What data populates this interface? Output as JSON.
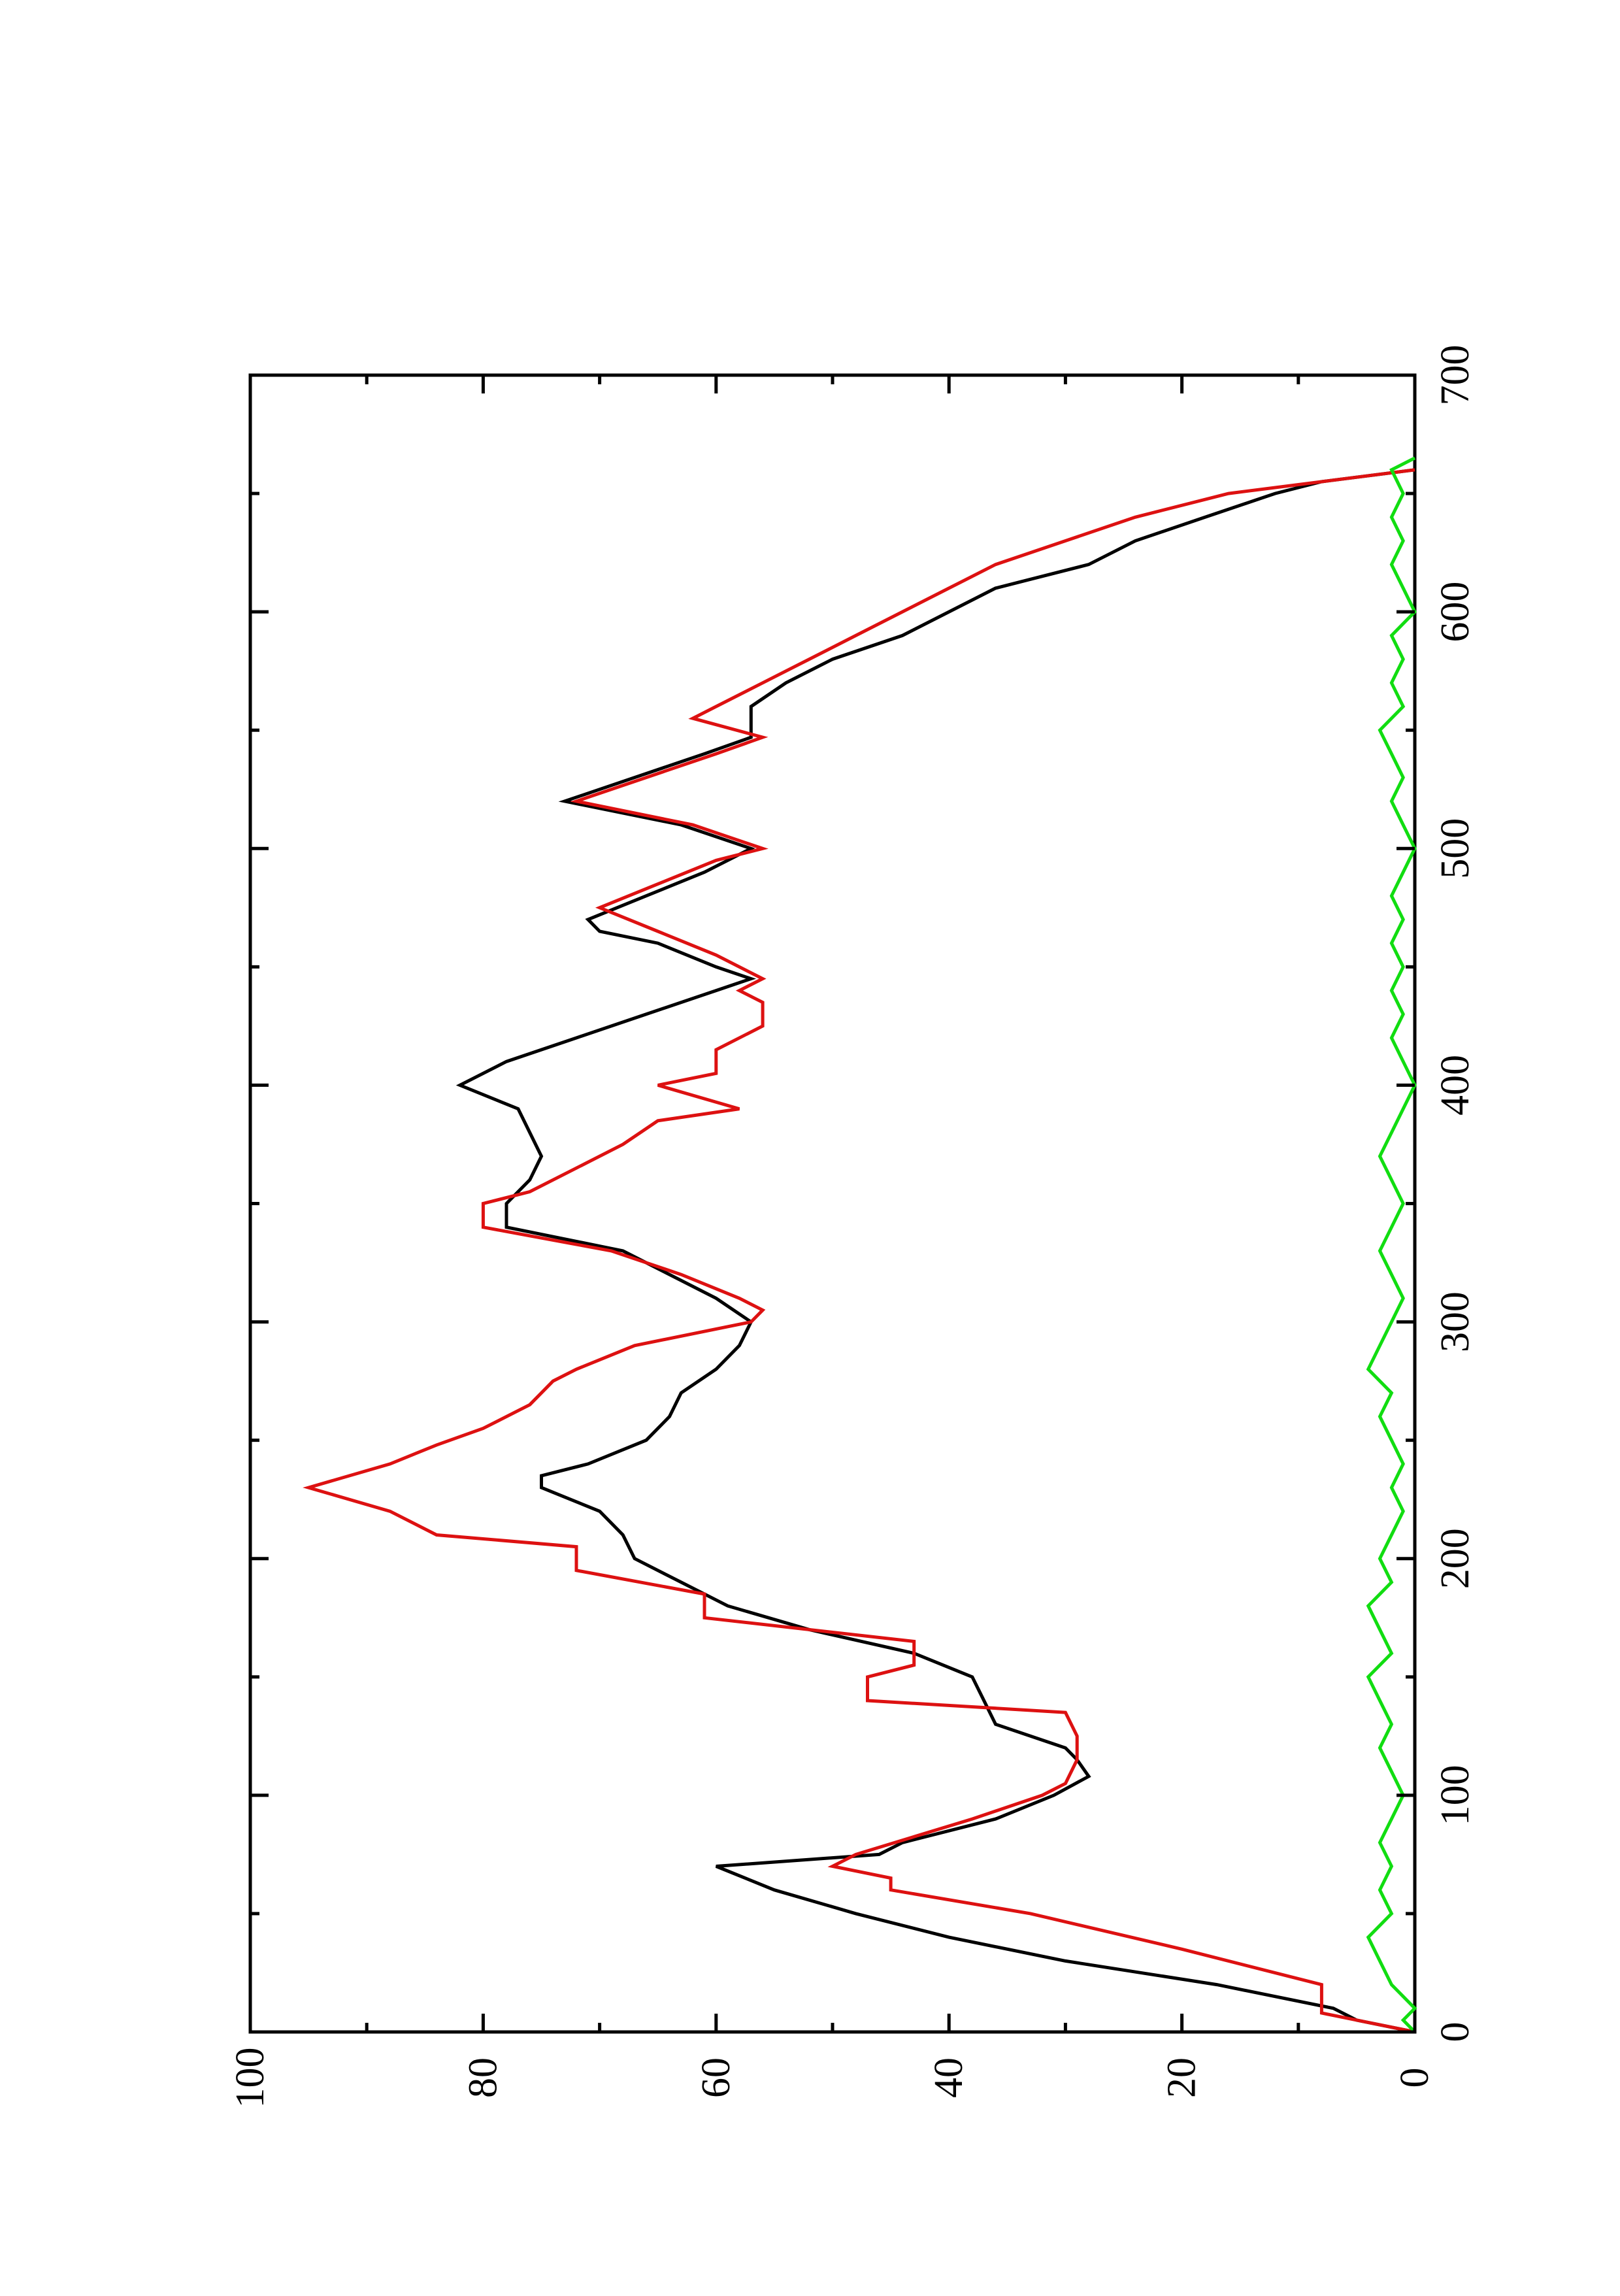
{
  "chart_data": {
    "type": "line",
    "orientation": "rotated-90-ccw",
    "title": "",
    "xlabel": "",
    "ylabel": "",
    "xlim": [
      0,
      700
    ],
    "ylim": [
      0,
      100
    ],
    "x_ticks": [
      0,
      100,
      200,
      300,
      400,
      500,
      600,
      700
    ],
    "x_tick_labels": [
      "0",
      "100",
      "200",
      "300",
      "400",
      "500",
      "600",
      "700"
    ],
    "y_ticks": [
      0,
      20,
      40,
      60,
      80,
      100
    ],
    "y_tick_labels": [
      "0",
      "20",
      "40",
      "60",
      "80",
      "100"
    ],
    "grid": false,
    "legend": "none",
    "series": [
      {
        "color": "#000000",
        "x": [
          0,
          5,
          10,
          20,
          30,
          40,
          50,
          60,
          70,
          75,
          80,
          90,
          100,
          108,
          115,
          120,
          130,
          140,
          150,
          160,
          170,
          180,
          190,
          200,
          210,
          220,
          230,
          235,
          240,
          250,
          260,
          270,
          280,
          290,
          300,
          310,
          320,
          330,
          340,
          350,
          360,
          370,
          380,
          390,
          400,
          410,
          420,
          430,
          440,
          445,
          450,
          460,
          465,
          470,
          480,
          490,
          500,
          510,
          520,
          530,
          540,
          547,
          555,
          560,
          570,
          580,
          590,
          600,
          610,
          620,
          630,
          640,
          650,
          655,
          660
        ],
        "values": [
          0,
          5,
          7,
          17,
          30,
          40,
          48,
          55,
          60,
          46,
          44,
          36,
          31,
          28,
          29,
          30,
          36,
          37,
          38,
          43,
          52,
          59,
          63,
          67,
          68,
          70,
          75,
          75,
          71,
          66,
          64,
          63,
          60,
          58,
          57,
          60,
          64,
          68,
          78,
          78,
          76,
          75,
          76,
          77,
          82,
          78,
          72,
          66,
          60,
          57,
          60,
          65,
          70,
          71,
          66,
          61,
          57,
          63,
          73,
          67,
          61,
          57,
          57,
          57,
          54,
          50,
          44,
          40,
          36,
          28,
          24,
          18,
          12,
          8,
          0
        ]
      },
      {
        "color": "#dd1111",
        "x": [
          0,
          8,
          20,
          35,
          50,
          60,
          65,
          70,
          75,
          90,
          100,
          105,
          115,
          125,
          135,
          140,
          150,
          155,
          165,
          175,
          185,
          195,
          205,
          210,
          220,
          230,
          240,
          248,
          255,
          265,
          275,
          280,
          290,
          300,
          305,
          310,
          320,
          330,
          340,
          350,
          355,
          365,
          375,
          385,
          390,
          400,
          405,
          415,
          425,
          435,
          440,
          445,
          455,
          465,
          475,
          485,
          495,
          500,
          510,
          520,
          530,
          540,
          547,
          555,
          560,
          570,
          580,
          590,
          600,
          610,
          620,
          630,
          640,
          650,
          655,
          660
        ],
        "values": [
          0,
          8,
          8,
          20,
          33,
          45,
          45,
          50,
          48,
          38,
          32,
          30,
          29,
          29,
          30,
          47,
          47,
          43,
          43,
          61,
          61,
          72,
          72,
          84,
          88,
          95,
          88,
          84,
          80,
          76,
          74,
          72,
          67,
          57,
          56,
          58,
          63,
          69,
          80,
          80,
          76,
          72,
          68,
          65,
          58,
          65,
          60,
          60,
          56,
          56,
          58,
          56,
          60,
          65,
          70,
          65,
          60,
          56,
          62,
          72,
          66,
          60,
          56,
          62,
          60,
          56,
          52,
          48,
          44,
          40,
          36,
          30,
          24,
          16,
          8,
          0
        ]
      },
      {
        "color": "#11dd11",
        "x": [
          0,
          5,
          10,
          20,
          30,
          40,
          50,
          60,
          70,
          80,
          90,
          100,
          110,
          120,
          130,
          140,
          150,
          160,
          170,
          180,
          190,
          200,
          210,
          220,
          230,
          240,
          250,
          260,
          270,
          280,
          290,
          300,
          310,
          320,
          330,
          340,
          350,
          360,
          370,
          380,
          390,
          400,
          410,
          420,
          430,
          440,
          450,
          460,
          470,
          480,
          490,
          500,
          510,
          520,
          530,
          540,
          550,
          560,
          570,
          580,
          590,
          600,
          610,
          620,
          630,
          640,
          650,
          660,
          665
        ],
        "values": [
          0,
          1,
          0,
          2,
          3,
          4,
          2,
          3,
          2,
          3,
          2,
          1,
          2,
          3,
          2,
          3,
          4,
          2,
          3,
          4,
          2,
          3,
          2,
          1,
          2,
          1,
          2,
          3,
          2,
          4,
          3,
          2,
          1,
          2,
          3,
          2,
          1,
          2,
          3,
          2,
          1,
          0,
          1,
          2,
          1,
          2,
          1,
          2,
          1,
          2,
          1,
          0,
          1,
          2,
          1,
          2,
          3,
          1,
          2,
          1,
          2,
          0,
          1,
          2,
          1,
          2,
          1,
          2,
          0
        ]
      }
    ]
  }
}
